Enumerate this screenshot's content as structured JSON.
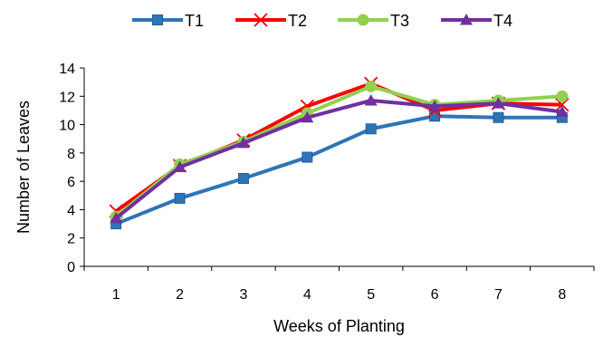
{
  "chart_data": {
    "type": "line",
    "title": "",
    "xlabel": "Weeks of Planting",
    "ylabel": "Number of Leaves",
    "categories": [
      "1",
      "2",
      "3",
      "4",
      "5",
      "6",
      "7",
      "8"
    ],
    "ylim": [
      0,
      14
    ],
    "yticks": [
      "0",
      "2",
      "4",
      "6",
      "8",
      "10",
      "12",
      "14"
    ],
    "grid": false,
    "legend_position": "top",
    "series": [
      {
        "name": "T1",
        "color": "#2e75b6",
        "marker": "square",
        "values": [
          3.0,
          4.8,
          6.2,
          7.7,
          9.7,
          10.6,
          10.5,
          10.5
        ]
      },
      {
        "name": "T2",
        "color": "#ff0000",
        "marker": "x",
        "values": [
          3.9,
          7.1,
          8.9,
          11.3,
          12.9,
          11.0,
          11.5,
          11.4
        ]
      },
      {
        "name": "T3",
        "color": "#92d050",
        "marker": "circle",
        "values": [
          3.5,
          7.2,
          8.8,
          10.8,
          12.7,
          11.4,
          11.7,
          12.0
        ]
      },
      {
        "name": "T4",
        "color": "#7030a0",
        "marker": "triangle",
        "values": [
          3.4,
          7.0,
          8.7,
          10.5,
          11.7,
          11.3,
          11.5,
          10.9
        ]
      }
    ]
  }
}
